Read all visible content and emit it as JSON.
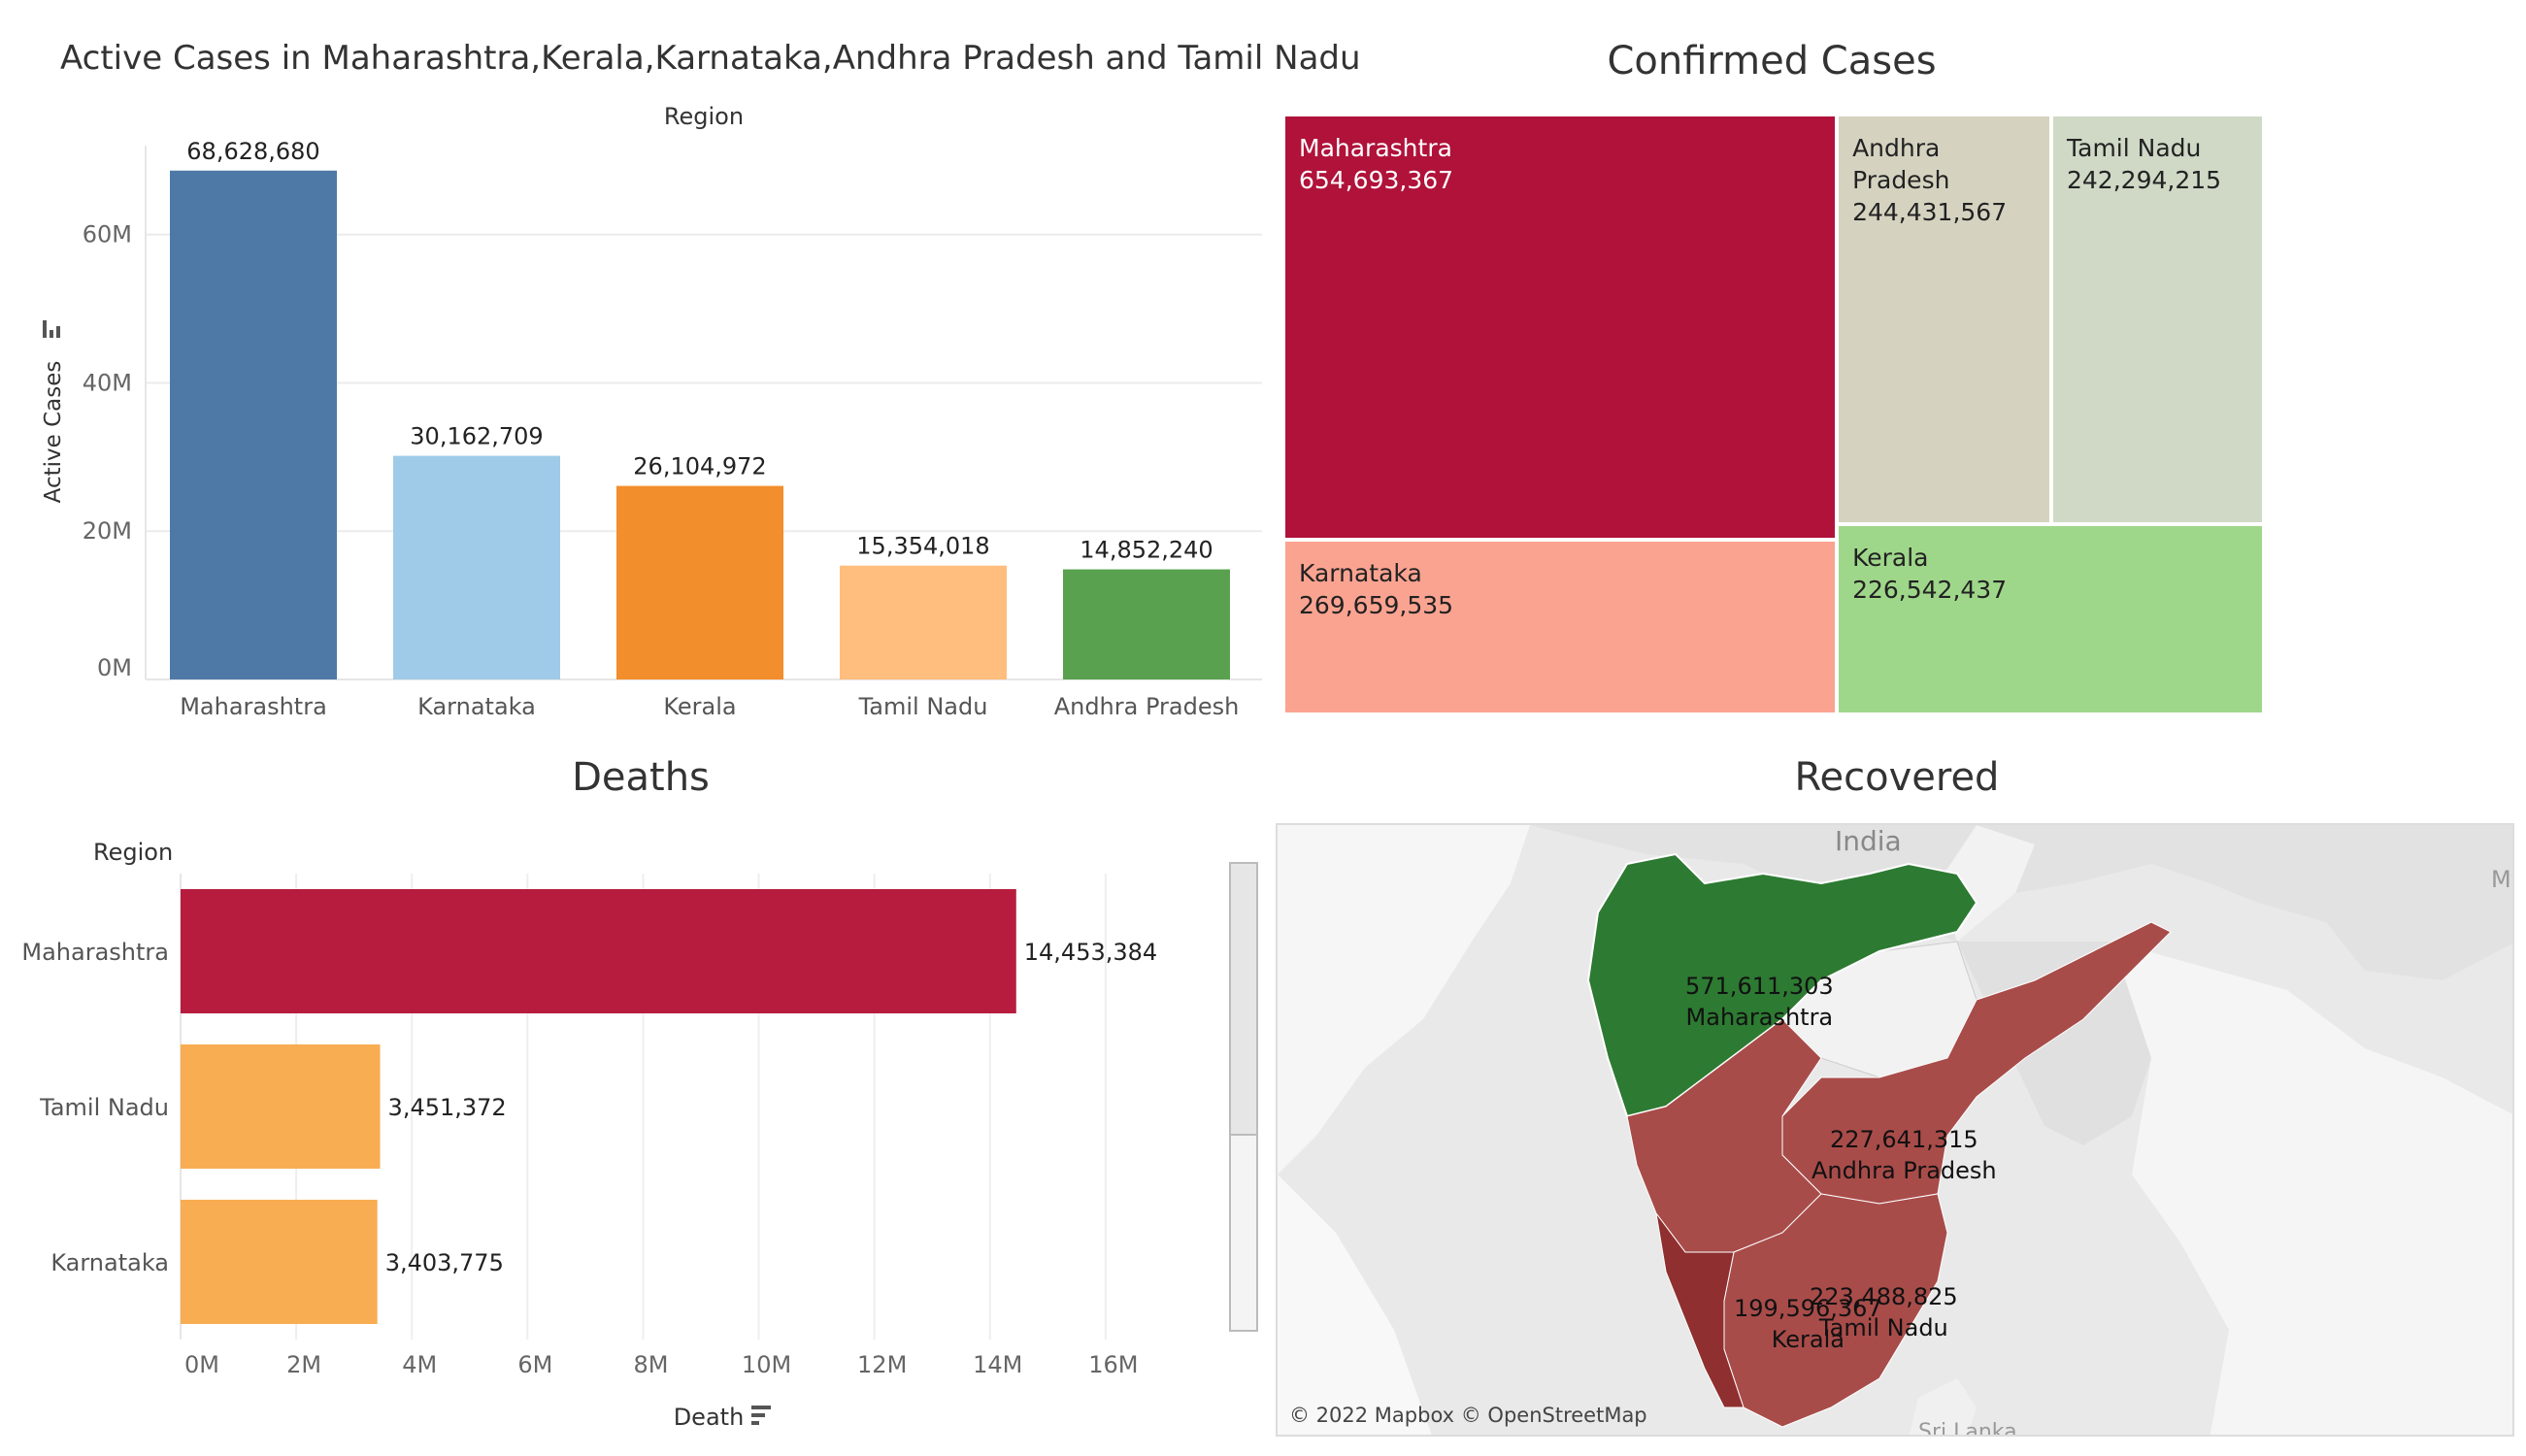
{
  "panels": {
    "active": {
      "title": "Active Cases in Maharashtra,Kerala,Karnataka,Andhra Pradesh and Tamil Nadu",
      "column_header": "Region",
      "ylabel": "Active Cases",
      "sort_icon": "sort-icon"
    },
    "confirmed": {
      "title": "Confirmed Cases"
    },
    "deaths": {
      "title": "Deaths",
      "row_header": "Region",
      "xlabel": "Death",
      "sort_icon": "sort-icon"
    },
    "recovered": {
      "title": "Recovered",
      "map_attribution": "© 2022 Mapbox © OpenStreetMap",
      "map_place_labels": [
        "India",
        "My",
        "Sri Lanka"
      ]
    }
  },
  "chart_data": [
    {
      "type": "bar",
      "title": "Active Cases in Maharashtra,Kerala,Karnataka,Andhra Pradesh and Tamil Nadu",
      "xlabel": "Region",
      "ylabel": "Active Cases",
      "categories": [
        "Maharashtra",
        "Karnataka",
        "Kerala",
        "Tamil Nadu",
        "Andhra Pradesh"
      ],
      "values": [
        68628680,
        30162709,
        26104972,
        15354018,
        14852240
      ],
      "value_labels": [
        "68,628,680",
        "30,162,709",
        "26,104,972",
        "15,354,018",
        "14,852,240"
      ],
      "colors": [
        "#4e79a7",
        "#a0cbe8",
        "#f28e2b",
        "#ffbe7d",
        "#59a14f"
      ],
      "yticks": [
        "0M",
        "20M",
        "40M",
        "60M"
      ],
      "ytick_values": [
        0,
        20000000,
        40000000,
        60000000
      ],
      "ylim": [
        0,
        72000000
      ],
      "grid": true
    },
    {
      "type": "treemap",
      "title": "Confirmed Cases",
      "categories": [
        "Maharashtra",
        "Karnataka",
        "Andhra Pradesh",
        "Tamil Nadu",
        "Kerala"
      ],
      "values": [
        654693367,
        269659535,
        244431567,
        242294215,
        226542437
      ],
      "value_labels": [
        "654,693,367",
        "269,659,535",
        "244,431,567",
        "242,294,215",
        "226,542,437"
      ],
      "colors": [
        "#b0123a",
        "#fba391",
        "#d5d3c0",
        "#cfd9c6",
        "#9fd78a"
      ],
      "text_colors": [
        "#ffffff",
        "#222222",
        "#222222",
        "#222222",
        "#222222"
      ]
    },
    {
      "type": "bar",
      "orientation": "horizontal",
      "title": "Deaths",
      "xlabel": "Death",
      "ylabel": "Region",
      "categories": [
        "Maharashtra",
        "Tamil Nadu",
        "Karnataka"
      ],
      "values": [
        14453384,
        3451372,
        3403775
      ],
      "value_labels": [
        "14,453,384",
        "3,451,372",
        "3,403,775"
      ],
      "colors": [
        "#b71c3e",
        "#f8ad52",
        "#f8ad52"
      ],
      "xticks": [
        "0M",
        "2M",
        "4M",
        "6M",
        "8M",
        "10M",
        "12M",
        "14M",
        "16M"
      ],
      "xtick_values": [
        0,
        2000000,
        4000000,
        6000000,
        8000000,
        10000000,
        12000000,
        14000000,
        16000000
      ],
      "xlim": [
        0,
        18000000
      ],
      "grid": true
    },
    {
      "type": "map",
      "title": "Recovered",
      "regions": [
        {
          "name": "Maharashtra",
          "value": 571611303,
          "label": "571,611,303",
          "color": "#2d7a32"
        },
        {
          "name": "Andhra Pradesh",
          "value": 227641315,
          "label": "227,641,315",
          "color": "#a84c4a"
        },
        {
          "name": "Tamil Nadu",
          "value": 223488825,
          "label": "223,488,825",
          "color": "#a84c4a"
        },
        {
          "name": "Kerala",
          "value": 199596367,
          "label": "199,596,367",
          "color": "#8f2f2f"
        }
      ]
    }
  ]
}
